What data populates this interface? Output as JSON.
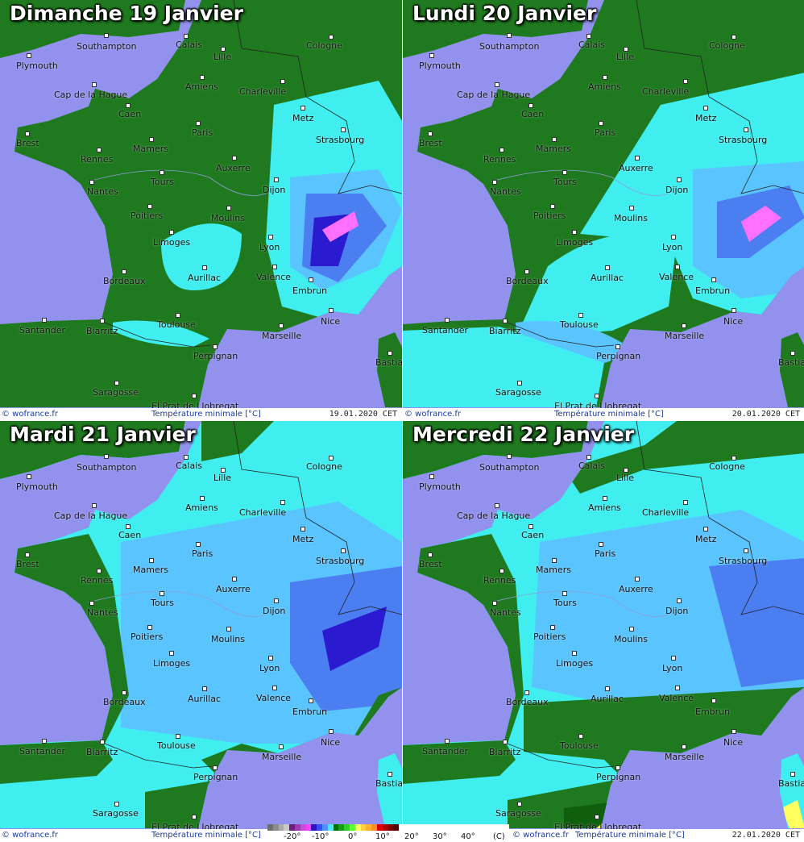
{
  "colors": {
    "ocean": "#9292ee",
    "green": "#1f7a1f",
    "dark_green": "#0f5f0f",
    "cyan": "#40eef0",
    "light_blue": "#5ac4ff",
    "blue": "#4b7ef0",
    "deep_blue": "#2a1ad0",
    "pink": "#ff70ff"
  },
  "footer": {
    "copyright": "© wofrance.fr",
    "variable": "Température minimale [°C]"
  },
  "panels": [
    {
      "title": "Dimanche 19 Janvier",
      "date": "19.01.2020 CET",
      "land_color": "#1f7a1f",
      "zones": "east-cold"
    },
    {
      "title": "Lundi 20 Janvier",
      "date": "20.01.2020 CET",
      "land_color": "#1f7a1f",
      "zones": "south-cold"
    },
    {
      "title": "Mardi 21 Janvier",
      "date": "",
      "land_color": "#40eef0",
      "zones": "widespread-cold"
    },
    {
      "title": "Mercredi 22 Janvier",
      "date": "22.01.2020 CET",
      "land_color": "#40eef0",
      "zones": "widespread-cold-coast-mild"
    }
  ],
  "cities": [
    "Southampton",
    "Calais",
    "Lille",
    "Cologne",
    "Plymouth",
    "Amiens",
    "Charleville",
    "Cap de la Hague",
    "Caen",
    "Metz",
    "Paris",
    "Brest",
    "Strasbourg",
    "Mamers",
    "Rennes",
    "Auxerre",
    "Tours",
    "Nantes",
    "Dijon",
    "Poitiers",
    "Moulins",
    "Limoges",
    "Lyon",
    "Aurillac",
    "Valence",
    "Bordeaux",
    "Embrun",
    "Toulouse",
    "Nice",
    "Marseille",
    "Santander",
    "Biarritz",
    "Perpignan",
    "Bastia",
    "Saragosse",
    "El Prat de Llobregat"
  ],
  "legend": {
    "labels": [
      "-20°",
      "-10°",
      "0°",
      "10°",
      "20°",
      "30°",
      "40°",
      "(C)"
    ],
    "colors": [
      "#6e6e6e",
      "#8c8c8c",
      "#aaaaaa",
      "#c8c8c8",
      "#6a1f7a",
      "#a03ab0",
      "#c84ed8",
      "#ff40ff",
      "#3010c0",
      "#3050f0",
      "#5090ff",
      "#50e8ff",
      "#007000",
      "#10a010",
      "#30d030",
      "#60ff30",
      "#ffff60",
      "#ffd040",
      "#ffb030",
      "#ff9020",
      "#e00000",
      "#b00000",
      "#800000",
      "#500000"
    ]
  }
}
